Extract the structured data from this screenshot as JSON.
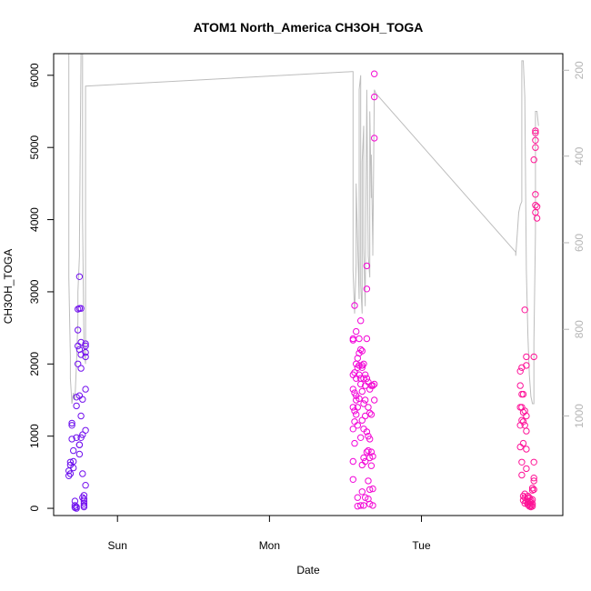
{
  "chart_data": {
    "type": "scatter",
    "title": "ATOM1 North_America CH3OH_TOGA",
    "xlabel": "Date",
    "ylabel": "CH3OH_TOGA",
    "x_ticks": [
      "Sun",
      "Mon",
      "Tue"
    ],
    "ylim": [
      0,
      6200
    ],
    "y_ticks": [
      "0",
      "1000",
      "2000",
      "3000",
      "4000",
      "5000",
      "6000"
    ],
    "y2_ticks": [
      "200",
      "400",
      "600",
      "800",
      "1000"
    ],
    "y2_reversed": true,
    "grid": false,
    "colors": {
      "start": "#6a11ee",
      "mid": "#ee00ee",
      "end": "#ff1493",
      "line": "#bdbdbd"
    },
    "series": [
      {
        "values": [
          [
            -1.32,
            450
          ],
          [
            -1.32,
            520
          ],
          [
            -1.31,
            600
          ],
          [
            -1.31,
            640
          ],
          [
            -1.31,
            480
          ],
          [
            -1.3,
            1180
          ],
          [
            -1.3,
            1150
          ],
          [
            -1.3,
            960
          ],
          [
            -1.29,
            800
          ],
          [
            -1.29,
            650
          ],
          [
            -1.29,
            560
          ],
          [
            -1.28,
            40
          ],
          [
            -1.28,
            10
          ],
          [
            -1.27,
            20
          ],
          [
            -1.27,
            1420
          ],
          [
            -1.27,
            980
          ],
          [
            -1.27,
            1540
          ],
          [
            -1.26,
            2000
          ],
          [
            -1.26,
            2250
          ],
          [
            -1.26,
            2470
          ],
          [
            -1.26,
            2760
          ],
          [
            -1.25,
            3210
          ],
          [
            -1.25,
            2770
          ],
          [
            -1.25,
            2200
          ],
          [
            -1.25,
            1560
          ],
          [
            -1.25,
            880
          ],
          [
            -1.25,
            750
          ],
          [
            -1.24,
            1280
          ],
          [
            -1.24,
            2130
          ],
          [
            -1.24,
            2300
          ],
          [
            -1.24,
            1940
          ],
          [
            -1.24,
            2770
          ],
          [
            -1.23,
            1510
          ],
          [
            -1.23,
            1020
          ],
          [
            -1.23,
            480
          ],
          [
            -1.23,
            150
          ],
          [
            -1.22,
            70
          ],
          [
            -1.22,
            20
          ],
          [
            -1.22,
            40
          ],
          [
            -1.22,
            100
          ],
          [
            -1.22,
            130
          ],
          [
            -1.22,
            180
          ],
          [
            -1.21,
            2250
          ],
          [
            -1.21,
            2160
          ],
          [
            -1.21,
            2100
          ],
          [
            -1.21,
            2280
          ],
          [
            -1.21,
            1650
          ],
          [
            -1.21,
            1080
          ],
          [
            -1.21,
            320
          ],
          [
            -1.24,
            980
          ],
          [
            -1.25,
            880
          ],
          [
            -1.27,
            0
          ],
          [
            -1.28,
            100
          ]
        ]
      },
      {
        "values": [
          [
            0.55,
            2350
          ],
          [
            0.55,
            2330
          ],
          [
            0.55,
            1850
          ],
          [
            0.55,
            1650
          ],
          [
            0.55,
            1400
          ],
          [
            0.55,
            1100
          ],
          [
            0.55,
            650
          ],
          [
            0.55,
            400
          ],
          [
            0.56,
            2810
          ],
          [
            0.56,
            1880
          ],
          [
            0.56,
            1600
          ],
          [
            0.56,
            1350
          ],
          [
            0.56,
            1200
          ],
          [
            0.56,
            900
          ],
          [
            0.57,
            2450
          ],
          [
            0.57,
            2000
          ],
          [
            0.57,
            1800
          ],
          [
            0.57,
            1560
          ],
          [
            0.57,
            1500
          ],
          [
            0.58,
            2080
          ],
          [
            0.58,
            1950
          ],
          [
            0.58,
            1400
          ],
          [
            0.58,
            1150
          ],
          [
            0.58,
            150
          ],
          [
            0.58,
            30
          ],
          [
            0.59,
            2350
          ],
          [
            0.59,
            2150
          ],
          [
            0.59,
            1850
          ],
          [
            0.59,
            1520
          ],
          [
            0.6,
            2600
          ],
          [
            0.6,
            2200
          ],
          [
            0.6,
            1720
          ],
          [
            0.6,
            980
          ],
          [
            0.6,
            40
          ],
          [
            0.61,
            2180
          ],
          [
            0.61,
            1950
          ],
          [
            0.61,
            1620
          ],
          [
            0.61,
            1220
          ],
          [
            0.61,
            600
          ],
          [
            0.61,
            230
          ],
          [
            0.62,
            2000
          ],
          [
            0.62,
            1800
          ],
          [
            0.62,
            1450
          ],
          [
            0.62,
            1100
          ],
          [
            0.62,
            700
          ],
          [
            0.62,
            40
          ],
          [
            0.63,
            1700
          ],
          [
            0.63,
            1500
          ],
          [
            0.63,
            1280
          ],
          [
            0.63,
            650
          ],
          [
            0.63,
            150
          ],
          [
            0.64,
            3360
          ],
          [
            0.64,
            3040
          ],
          [
            0.64,
            2350
          ],
          [
            0.64,
            1800
          ],
          [
            0.64,
            1060
          ],
          [
            0.64,
            780
          ],
          [
            0.65,
            1750
          ],
          [
            0.65,
            1400
          ],
          [
            0.65,
            1000
          ],
          [
            0.65,
            800
          ],
          [
            0.65,
            380
          ],
          [
            0.65,
            130
          ],
          [
            0.66,
            1650
          ],
          [
            0.66,
            1320
          ],
          [
            0.66,
            960
          ],
          [
            0.66,
            700
          ],
          [
            0.66,
            260
          ],
          [
            0.66,
            60
          ],
          [
            0.67,
            1700
          ],
          [
            0.67,
            1300
          ],
          [
            0.67,
            780
          ],
          [
            0.67,
            590
          ],
          [
            0.68,
            1700
          ],
          [
            0.68,
            720
          ],
          [
            0.68,
            270
          ],
          [
            0.68,
            40
          ],
          [
            0.69,
            6020
          ],
          [
            0.69,
            5700
          ],
          [
            0.69,
            5130
          ],
          [
            0.69,
            1720
          ],
          [
            0.69,
            1500
          ],
          [
            0.59,
            1980
          ],
          [
            0.61,
            1980
          ],
          [
            0.63,
            1850
          ],
          [
            0.57,
            1300
          ],
          [
            0.6,
            1800
          ]
        ]
      },
      {
        "values": [
          [
            1.65,
            1900
          ],
          [
            1.65,
            1700
          ],
          [
            1.65,
            1400
          ],
          [
            1.65,
            1150
          ],
          [
            1.65,
            850
          ],
          [
            1.66,
            1950
          ],
          [
            1.66,
            1580
          ],
          [
            1.66,
            1400
          ],
          [
            1.66,
            1220
          ],
          [
            1.66,
            640
          ],
          [
            1.66,
            460
          ],
          [
            1.67,
            1580
          ],
          [
            1.67,
            1330
          ],
          [
            1.67,
            1200
          ],
          [
            1.67,
            900
          ],
          [
            1.67,
            170
          ],
          [
            1.67,
            110
          ],
          [
            1.68,
            2750
          ],
          [
            1.68,
            1350
          ],
          [
            1.68,
            1150
          ],
          [
            1.68,
            200
          ],
          [
            1.68,
            150
          ],
          [
            1.68,
            70
          ],
          [
            1.69,
            2100
          ],
          [
            1.69,
            1980
          ],
          [
            1.69,
            1280
          ],
          [
            1.69,
            1070
          ],
          [
            1.69,
            820
          ],
          [
            1.69,
            550
          ],
          [
            1.69,
            90
          ],
          [
            1.7,
            140
          ],
          [
            1.7,
            80
          ],
          [
            1.7,
            50
          ],
          [
            1.71,
            100
          ],
          [
            1.71,
            60
          ],
          [
            1.71,
            30
          ],
          [
            1.72,
            80
          ],
          [
            1.72,
            40
          ],
          [
            1.72,
            20
          ],
          [
            1.73,
            120
          ],
          [
            1.73,
            60
          ],
          [
            1.73,
            30
          ],
          [
            1.74,
            260
          ],
          [
            1.74,
            380
          ],
          [
            1.74,
            420
          ],
          [
            1.74,
            640
          ],
          [
            1.74,
            2100
          ],
          [
            1.74,
            4830
          ],
          [
            1.75,
            5000
          ],
          [
            1.75,
            5100
          ],
          [
            1.75,
            5200
          ],
          [
            1.75,
            5230
          ],
          [
            1.75,
            4350
          ],
          [
            1.75,
            4200
          ],
          [
            1.76,
            4180
          ],
          [
            1.76,
            4020
          ],
          [
            1.75,
            4100
          ],
          [
            1.73,
            250
          ],
          [
            1.73,
            280
          ],
          [
            1.7,
            170
          ],
          [
            1.71,
            150
          ],
          [
            1.72,
            110
          ]
        ]
      }
    ],
    "line_series": {
      "values": [
        [
          -1.33,
          6300
        ],
        [
          -1.32,
          6300
        ],
        [
          -1.32,
          3200
        ],
        [
          -1.31,
          2100
        ],
        [
          -1.31,
          1800
        ],
        [
          -1.3,
          1450
        ],
        [
          -1.29,
          1600
        ],
        [
          -1.28,
          1500
        ],
        [
          -1.27,
          2000
        ],
        [
          -1.26,
          2600
        ],
        [
          -1.26,
          3000
        ],
        [
          -1.25,
          3500
        ],
        [
          -1.25,
          3700
        ],
        [
          -1.24,
          6300
        ],
        [
          -1.23,
          6300
        ],
        [
          -1.23,
          4000
        ],
        [
          -1.22,
          2200
        ],
        [
          -1.21,
          2000
        ],
        [
          -1.21,
          5850
        ],
        [
          0.54,
          6050
        ],
        [
          0.55,
          6050
        ],
        [
          0.55,
          3300
        ],
        [
          0.56,
          2700
        ],
        [
          0.57,
          3400
        ],
        [
          0.57,
          4500
        ],
        [
          0.58,
          3700
        ],
        [
          0.59,
          2900
        ],
        [
          0.59,
          5800
        ],
        [
          0.6,
          6000
        ],
        [
          0.6,
          3100
        ],
        [
          0.61,
          2700
        ],
        [
          0.61,
          4800
        ],
        [
          0.62,
          5300
        ],
        [
          0.62,
          3600
        ],
        [
          0.63,
          2800
        ],
        [
          0.63,
          3000
        ],
        [
          0.64,
          5700
        ],
        [
          0.64,
          5800
        ],
        [
          0.65,
          3500
        ],
        [
          0.66,
          3200
        ],
        [
          0.66,
          5500
        ],
        [
          0.67,
          4300
        ],
        [
          0.67,
          4900
        ],
        [
          0.68,
          3600
        ],
        [
          0.68,
          3500
        ],
        [
          0.69,
          5800
        ],
        [
          0.7,
          5750
        ],
        [
          1.62,
          3550
        ],
        [
          1.62,
          3500
        ],
        [
          1.63,
          3800
        ],
        [
          1.64,
          4100
        ],
        [
          1.65,
          4200
        ],
        [
          1.66,
          4250
        ],
        [
          1.66,
          6200
        ],
        [
          1.67,
          6200
        ],
        [
          1.68,
          5700
        ],
        [
          1.69,
          3300
        ],
        [
          1.7,
          2400
        ],
        [
          1.71,
          1850
        ],
        [
          1.72,
          1550
        ],
        [
          1.73,
          1450
        ],
        [
          1.74,
          1450
        ],
        [
          1.74,
          2300
        ],
        [
          1.75,
          3800
        ],
        [
          1.75,
          5500
        ],
        [
          1.76,
          5500
        ],
        [
          1.77,
          5300
        ]
      ]
    }
  }
}
